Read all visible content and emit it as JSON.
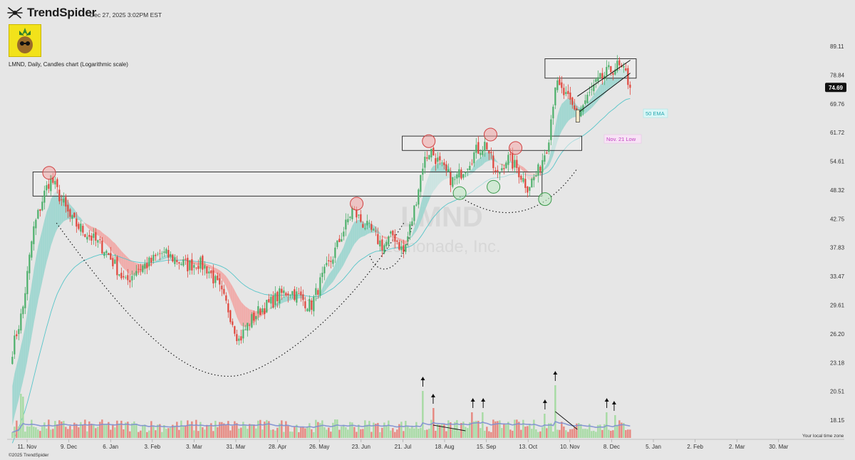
{
  "header": {
    "brand": "TrendSpider",
    "timestamp": "Dec 27, 2025 3:02PM EST",
    "description": "LMND, Daily, Candles chart (Logarithmic scale)",
    "copyright": "©2025 TrendSpider",
    "timezone_note": "Your local time zone"
  },
  "watermark": {
    "ticker": "LMND",
    "company": "Lemonade, Inc."
  },
  "colors": {
    "background": "#e6e6e6",
    "up": "#4caf6a",
    "down": "#e0453b",
    "ema_fill_up": "#9ed6d0",
    "ema_fill_down": "#f0aaa8",
    "ema50": "#56c5c9",
    "volume_ma": "#7e8fd0",
    "price_badge": "#111111",
    "annotation_pink": "#c040c0"
  },
  "chart_data": {
    "type": "candlestick",
    "symbol": "LMND",
    "interval": "Daily",
    "scale": "log",
    "ylim": [
      16.5,
      92
    ],
    "y_ticks": [
      89.11,
      78.84,
      69.76,
      61.72,
      54.61,
      48.32,
      42.75,
      37.83,
      33.47,
      29.61,
      26.2,
      23.18,
      20.51,
      18.15
    ],
    "x_tick_labels": [
      "11. Nov",
      "9. Dec",
      "6. Jan",
      "3. Feb",
      "3. Mar",
      "31. Mar",
      "28. Apr",
      "26. May",
      "23. Jun",
      "21. Jul",
      "18. Aug",
      "15. Sep",
      "13. Oct",
      "10. Nov",
      "8. Dec",
      "5. Jan",
      "2. Feb",
      "2. Mar",
      "30. Mar"
    ],
    "last_price": 74.69,
    "price_path": [
      [
        "2024-11-01",
        24.5
      ],
      [
        "2024-11-08",
        29.0
      ],
      [
        "2024-11-15",
        40.5
      ],
      [
        "2024-11-22",
        47.0
      ],
      [
        "2024-11-27",
        51.0
      ],
      [
        "2024-12-04",
        46.5
      ],
      [
        "2024-12-11",
        42.5
      ],
      [
        "2024-12-20",
        40.5
      ],
      [
        "2025-01-03",
        37.5
      ],
      [
        "2025-01-10",
        35.0
      ],
      [
        "2025-01-17",
        32.5
      ],
      [
        "2025-01-24",
        34.5
      ],
      [
        "2025-02-03",
        35.5
      ],
      [
        "2025-02-10",
        37.0
      ],
      [
        "2025-02-20",
        36.0
      ],
      [
        "2025-02-28",
        35.0
      ],
      [
        "2025-03-07",
        35.5
      ],
      [
        "2025-03-14",
        34.5
      ],
      [
        "2025-03-21",
        32.0
      ],
      [
        "2025-03-28",
        29.0
      ],
      [
        "2025-04-04",
        25.5
      ],
      [
        "2025-04-11",
        27.5
      ],
      [
        "2025-04-18",
        29.0
      ],
      [
        "2025-04-25",
        29.8
      ],
      [
        "2025-05-02",
        31.0
      ],
      [
        "2025-05-09",
        31.5
      ],
      [
        "2025-05-16",
        30.5
      ],
      [
        "2025-05-23",
        29.5
      ],
      [
        "2025-05-30",
        33.0
      ],
      [
        "2025-06-06",
        36.0
      ],
      [
        "2025-06-13",
        40.0
      ],
      [
        "2025-06-20",
        44.5
      ],
      [
        "2025-06-27",
        42.0
      ],
      [
        "2025-07-03",
        40.5
      ],
      [
        "2025-07-11",
        38.0
      ],
      [
        "2025-07-18",
        40.0
      ],
      [
        "2025-07-25",
        37.0
      ],
      [
        "2025-07-31",
        43.0
      ],
      [
        "2025-08-07",
        54.0
      ],
      [
        "2025-08-12",
        57.5
      ],
      [
        "2025-08-20",
        53.0
      ],
      [
        "2025-08-28",
        50.0
      ],
      [
        "2025-09-05",
        53.5
      ],
      [
        "2025-09-12",
        57.0
      ],
      [
        "2025-09-19",
        59.0
      ],
      [
        "2025-09-26",
        51.0
      ],
      [
        "2025-10-03",
        55.5
      ],
      [
        "2025-10-10",
        53.0
      ],
      [
        "2025-10-17",
        49.0
      ],
      [
        "2025-10-24",
        52.0
      ],
      [
        "2025-10-31",
        59.0
      ],
      [
        "2025-11-05",
        76.0
      ],
      [
        "2025-11-12",
        72.0
      ],
      [
        "2025-11-20",
        66.5
      ],
      [
        "2025-11-26",
        71.0
      ],
      [
        "2025-12-03",
        76.0
      ],
      [
        "2025-12-10",
        79.5
      ],
      [
        "2025-12-17",
        82.0
      ],
      [
        "2025-12-23",
        79.0
      ],
      [
        "2025-12-26",
        74.69
      ]
    ],
    "volume_spikes": [
      [
        "2025-08-07",
        2.8
      ],
      [
        "2025-08-14",
        1.6
      ],
      [
        "2025-09-10",
        1.3
      ],
      [
        "2025-09-17",
        1.3
      ],
      [
        "2025-11-05",
        3.2
      ],
      [
        "2025-10-29",
        1.2
      ],
      [
        "2025-12-10",
        1.3
      ],
      [
        "2025-12-15",
        1.1
      ]
    ],
    "zones": [
      {
        "type": "resistance",
        "from": "2024-11-15",
        "to": "2025-10-27",
        "low": 47.1,
        "high": 52.2
      },
      {
        "type": "resistance",
        "from": "2025-07-24",
        "to": "2025-11-23",
        "low": 57.2,
        "high": 60.8
      },
      {
        "type": "resistance",
        "from": "2025-10-29",
        "to": "2025-12-30",
        "low": 77.8,
        "high": 84.5
      }
    ],
    "annotations": [
      {
        "label": "Nov. 21 Low",
        "value": 59.9
      },
      {
        "label": "50 EMA",
        "value": 66.8
      }
    ],
    "red_circles": [
      [
        "2024-11-26",
        52.0
      ],
      [
        "2025-06-23",
        45.6
      ],
      [
        "2025-08-11",
        59.5
      ],
      [
        "2025-09-22",
        61.2
      ],
      [
        "2025-10-09",
        57.8
      ]
    ],
    "green_circles": [
      [
        "2025-09-01",
        47.7
      ],
      [
        "2025-09-24",
        49.0
      ],
      [
        "2025-10-29",
        46.5
      ]
    ]
  }
}
